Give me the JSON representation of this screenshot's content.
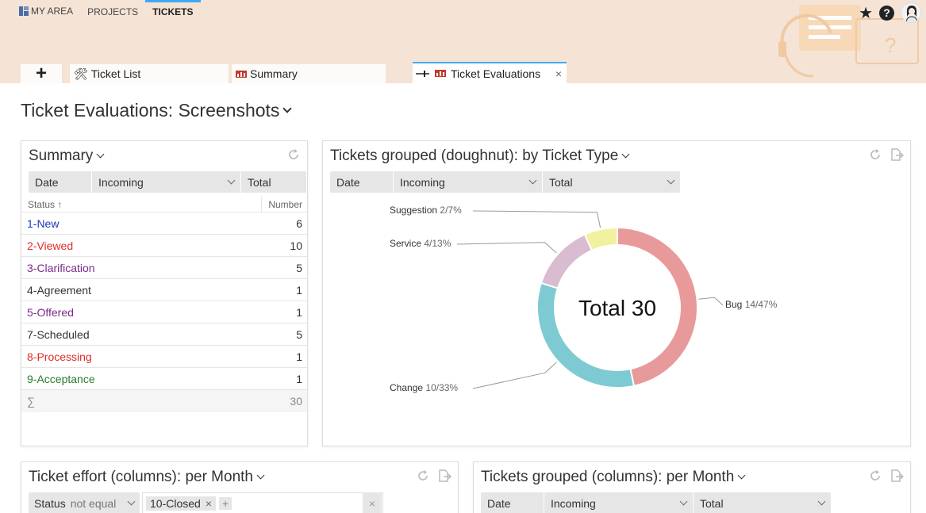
{
  "topnav": {
    "my_area": "MY AREA",
    "projects": "PROJECTS",
    "tickets": "TICKETS"
  },
  "tabs": {
    "add": "+",
    "ticket_list": "Ticket List",
    "summary": "Summary",
    "ticket_evaluations": "Ticket Evaluations",
    "close": "×"
  },
  "page_title": "Ticket Evaluations: Screenshots",
  "summary_panel": {
    "title": "Summary",
    "filter": {
      "date": "Date",
      "incoming": "Incoming",
      "total": "Total"
    },
    "columns": {
      "status": "Status",
      "sort_indicator": "↑",
      "number": "Number"
    },
    "rows": [
      {
        "label": "1-New",
        "value": "6",
        "color": "#1a3ab8"
      },
      {
        "label": "2-Viewed",
        "value": "10",
        "color": "#e02b2b"
      },
      {
        "label": "3-Clarification",
        "value": "5",
        "color": "#7b2a8c"
      },
      {
        "label": "4-Agreement",
        "value": "1",
        "color": "#333333"
      },
      {
        "label": "5-Offered",
        "value": "1",
        "color": "#7b2a8c"
      },
      {
        "label": "7-Scheduled",
        "value": "5",
        "color": "#333333"
      },
      {
        "label": "8-Processing",
        "value": "1",
        "color": "#e02b2b"
      },
      {
        "label": "9-Acceptance",
        "value": "1",
        "color": "#2a7a2a"
      }
    ],
    "total_symbol": "∑",
    "total_value": "30"
  },
  "doughnut_panel": {
    "title": "Tickets grouped (doughnut): by Ticket Type",
    "filter": {
      "date": "Date",
      "incoming": "Incoming",
      "total": "Total"
    },
    "center_text": "Total 30"
  },
  "chart_data": {
    "type": "pie",
    "categories": [
      "Bug",
      "Change",
      "Service",
      "Suggestion"
    ],
    "values": [
      14,
      10,
      4,
      2
    ],
    "percent_labels": [
      "14/47%",
      "10/33%",
      "4/13%",
      "2/7%"
    ],
    "colors": [
      "#e89a9a",
      "#7ecad2",
      "#d9bccf",
      "#f1f19f"
    ],
    "center_label": "Total 30"
  },
  "effort_panel": {
    "title": "Ticket effort (columns): per Month",
    "filter_status": "Status",
    "filter_operator": "not equal",
    "filter_chip": "10-Closed",
    "chip_remove": "×",
    "chip_add": "+",
    "clear": "×"
  },
  "columns_panel": {
    "title": "Tickets grouped (columns): per Month",
    "filter": {
      "date": "Date",
      "incoming": "Incoming",
      "total": "Total"
    }
  },
  "colors": {
    "accent": "#3fa9f5",
    "header_bg": "#f5e3d6"
  }
}
